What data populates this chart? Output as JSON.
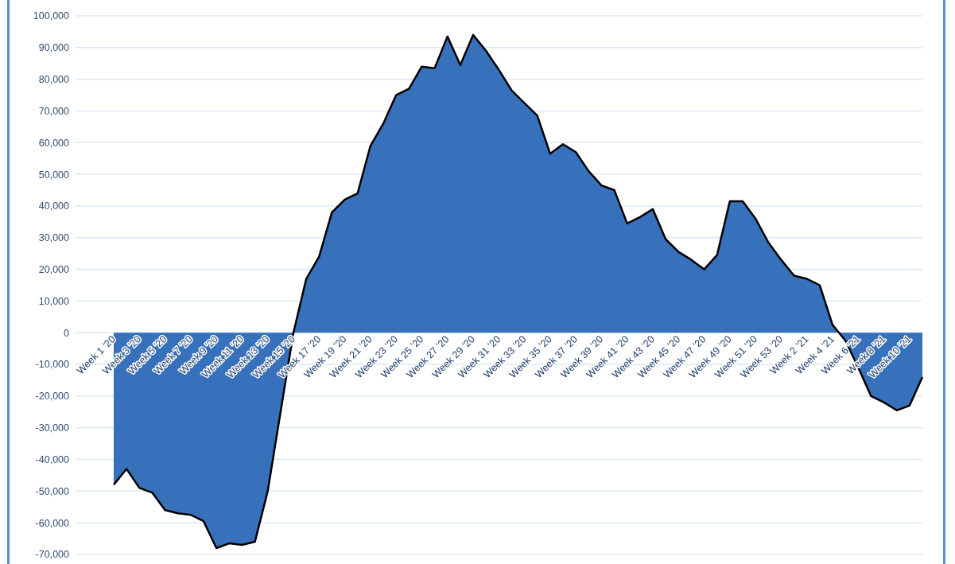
{
  "chart_data": {
    "type": "area",
    "categories": [
      "Week 1 ’20",
      null,
      "Week 3 ’20",
      null,
      "Week 5 ’20",
      null,
      "Week 7 ’20",
      null,
      "Week 9 ’20",
      null,
      "Week 11 ’20",
      null,
      "Week 13 ’20",
      null,
      "Week 15 ’20",
      null,
      "Week 17 ’20",
      null,
      "Week 19 ’20",
      null,
      "Week 21 ’20",
      null,
      "Week 23 ’20",
      null,
      "Week 25 ’20",
      null,
      "Week 27 ’20",
      null,
      "Week 29 ’20",
      null,
      "Week 31 ’20",
      null,
      "Week 33 ’20",
      null,
      "Week 35 ’20",
      null,
      "Week 37 ’20",
      null,
      "Week 39 ’20",
      null,
      "Week 41 ’20",
      null,
      "Week 43 ’20",
      null,
      "Week 45 ’20",
      null,
      "Week 47 ’20",
      null,
      "Week 49 ’20",
      null,
      "Week 51 ’20",
      null,
      "Week 53 ’20",
      null,
      "Week 2 ’21",
      null,
      "Week 4 ’21",
      null,
      "Week 6 ’21",
      null,
      "Week 8 ’21",
      null,
      "Week 10 ’21",
      null
    ],
    "series": [
      {
        "color": "#3871bb",
        "values": [
          -48000,
          -43000,
          -49000,
          -50500,
          -56000,
          -57000,
          -57500,
          -59500,
          -68000,
          -66500,
          -67000,
          -66000,
          -50000,
          -25000,
          0,
          17000,
          24000,
          38000,
          42000,
          44000,
          59000,
          66000,
          75000,
          77000,
          84000,
          83500,
          93500,
          84500,
          94000,
          89000,
          83000,
          76500,
          72500,
          68500,
          56500,
          59500,
          57000,
          51000,
          46500,
          45000,
          34500,
          36500,
          39000,
          29500,
          25500,
          23000,
          20000,
          24500,
          41500,
          41500,
          36000,
          28500,
          23000,
          18000,
          17000,
          15000,
          2500,
          -2500,
          -11000,
          -20000,
          -22000,
          -24500,
          -23000,
          -14000
        ]
      }
    ],
    "ylim": [
      -70000,
      100000
    ],
    "yticks": [
      {
        "value": -70000,
        "label": "-70,000"
      },
      {
        "value": -60000,
        "label": "-60,000"
      },
      {
        "value": -50000,
        "label": "-50,000"
      },
      {
        "value": -40000,
        "label": "-40,000"
      },
      {
        "value": -30000,
        "label": "-30,000"
      },
      {
        "value": -20000,
        "label": "-20,000"
      },
      {
        "value": -10000,
        "label": "-10,000"
      },
      0,
      {
        "value": 10000,
        "label": "10,000"
      },
      {
        "value": 20000,
        "label": "20,000"
      },
      {
        "value": 30000,
        "label": "30,000"
      },
      {
        "value": 40000,
        "label": "40,000"
      },
      {
        "value": 50000,
        "label": "50,000"
      },
      {
        "value": 60000,
        "label": "60,000"
      },
      {
        "value": 70000,
        "label": "70,000"
      },
      {
        "value": 80000,
        "label": "80,000"
      },
      {
        "value": 90000,
        "label": "90,000"
      },
      {
        "value": 100000,
        "label": "100,000"
      }
    ],
    "grid": "y"
  }
}
